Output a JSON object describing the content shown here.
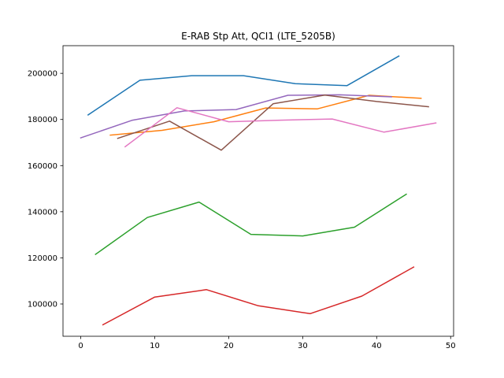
{
  "chart_data": {
    "type": "line",
    "title": "E-RAB Stp Att, QCI1 (LTE_5205B)",
    "xlabel": "",
    "ylabel": "",
    "xlim": [
      -2.4,
      50.4
    ],
    "ylim": [
      86000,
      212000
    ],
    "x_ticks": [
      0,
      10,
      20,
      30,
      40,
      50
    ],
    "y_ticks": [
      100000,
      120000,
      140000,
      160000,
      180000,
      200000
    ],
    "grid": false,
    "legend": "none",
    "series": [
      {
        "color": "#1f77b4",
        "x": [
          1,
          8,
          15,
          22,
          29,
          36,
          43
        ],
        "y": [
          182000,
          197000,
          199000,
          199000,
          195500,
          194700,
          207500
        ]
      },
      {
        "color": "#ff7f0e",
        "x": [
          4,
          11,
          18,
          25,
          32,
          39,
          46
        ],
        "y": [
          173200,
          175300,
          179000,
          185000,
          184600,
          190500,
          189200
        ]
      },
      {
        "color": "#2ca02c",
        "x": [
          2,
          9,
          16,
          23,
          30,
          37,
          44
        ],
        "y": [
          121500,
          137500,
          144200,
          130200,
          129500,
          133300,
          147600
        ]
      },
      {
        "color": "#d62728",
        "x": [
          3,
          10,
          17,
          24,
          31,
          38,
          45
        ],
        "y": [
          91000,
          103000,
          106200,
          99200,
          95800,
          103400,
          116000
        ]
      },
      {
        "color": "#9467bd",
        "x": [
          0,
          7,
          14,
          21,
          28,
          35,
          42
        ],
        "y": [
          172000,
          179700,
          183700,
          184300,
          190500,
          190700,
          189800
        ]
      },
      {
        "color": "#8c564b",
        "x": [
          5,
          12,
          19,
          26,
          33,
          40,
          47
        ],
        "y": [
          171800,
          179300,
          166700,
          186800,
          190600,
          187800,
          185500
        ]
      },
      {
        "color": "#e377c2",
        "x": [
          6,
          13,
          20,
          27,
          34,
          41,
          48
        ],
        "y": [
          168200,
          185100,
          179000,
          179700,
          180200,
          174500,
          178500
        ]
      }
    ]
  }
}
